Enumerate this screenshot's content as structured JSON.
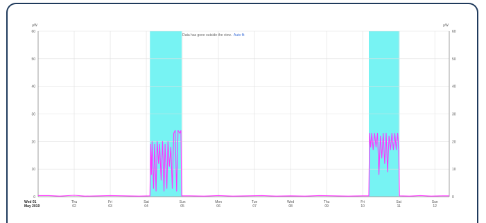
{
  "chart_data": {
    "type": "line",
    "message": {
      "text": "Data has gone outside the view.",
      "link": "Auto fit"
    },
    "y_unit_left": "μW",
    "y_unit_right": "μW",
    "ylim": [
      0,
      60
    ],
    "y_ticks": [
      "0",
      "10",
      "20",
      "30",
      "40",
      "50",
      "60"
    ],
    "x_ticks": [
      {
        "day": "Wed 01",
        "sub": "May 2019"
      },
      {
        "day": "Thu",
        "sub": "02"
      },
      {
        "day": "Fri",
        "sub": "03"
      },
      {
        "day": "Sat",
        "sub": "04"
      },
      {
        "day": "Sun",
        "sub": "05"
      },
      {
        "day": "Mon",
        "sub": "06"
      },
      {
        "day": "Tue",
        "sub": "07"
      },
      {
        "day": "Wed",
        "sub": "08"
      },
      {
        "day": "Thu",
        "sub": "09"
      },
      {
        "day": "Fri",
        "sub": "10"
      },
      {
        "day": "Sat",
        "sub": "11"
      },
      {
        "day": "Sun",
        "sub": "12"
      }
    ],
    "xlim_days": [
      0,
      11.4
    ],
    "grid": true,
    "highlight_color": "#77f3f3",
    "series_color": "#ff33ff",
    "highlights": [
      {
        "start": 3.1,
        "end": 3.98
      },
      {
        "start": 9.17,
        "end": 10.02
      }
    ],
    "series": [
      {
        "points": [
          [
            0.0,
            0.4
          ],
          [
            0.3,
            0.4
          ],
          [
            0.6,
            0.2
          ],
          [
            1.0,
            0.5
          ],
          [
            1.3,
            0.2
          ],
          [
            1.7,
            0.3
          ],
          [
            2.0,
            0.4
          ],
          [
            2.4,
            0.3
          ],
          [
            2.8,
            0.2
          ],
          [
            3.1,
            0.3
          ],
          [
            3.12,
            19
          ],
          [
            3.14,
            8
          ],
          [
            3.16,
            20
          ],
          [
            3.2,
            3
          ],
          [
            3.23,
            19
          ],
          [
            3.27,
            2
          ],
          [
            3.3,
            20
          ],
          [
            3.34,
            12
          ],
          [
            3.37,
            19
          ],
          [
            3.41,
            6
          ],
          [
            3.45,
            20
          ],
          [
            3.49,
            2
          ],
          [
            3.52,
            19
          ],
          [
            3.57,
            3
          ],
          [
            3.6,
            20
          ],
          [
            3.64,
            11
          ],
          [
            3.68,
            18
          ],
          [
            3.72,
            3
          ],
          [
            3.76,
            23
          ],
          [
            3.8,
            24
          ],
          [
            3.84,
            2
          ],
          [
            3.88,
            24
          ],
          [
            3.93,
            23
          ],
          [
            3.96,
            24
          ],
          [
            3.98,
            0.3
          ],
          [
            4.2,
            0.3
          ],
          [
            4.6,
            0.2
          ],
          [
            5.0,
            0.4
          ],
          [
            5.4,
            0.2
          ],
          [
            5.8,
            0.3
          ],
          [
            6.2,
            0.4
          ],
          [
            6.6,
            0.2
          ],
          [
            7.0,
            0.3
          ],
          [
            7.4,
            0.2
          ],
          [
            7.8,
            0.4
          ],
          [
            8.2,
            0.3
          ],
          [
            8.6,
            0.2
          ],
          [
            9.0,
            0.3
          ],
          [
            9.17,
            0.3
          ],
          [
            9.19,
            23
          ],
          [
            9.22,
            18
          ],
          [
            9.25,
            23
          ],
          [
            9.29,
            17
          ],
          [
            9.33,
            23
          ],
          [
            9.37,
            18
          ],
          [
            9.41,
            23
          ],
          [
            9.45,
            8
          ],
          [
            9.49,
            22
          ],
          [
            9.53,
            14
          ],
          [
            9.57,
            23
          ],
          [
            9.61,
            12
          ],
          [
            9.65,
            23
          ],
          [
            9.69,
            9
          ],
          [
            9.73,
            22
          ],
          [
            9.77,
            17
          ],
          [
            9.81,
            23
          ],
          [
            9.85,
            17
          ],
          [
            9.89,
            23
          ],
          [
            9.93,
            17
          ],
          [
            9.97,
            23
          ],
          [
            10.0,
            17
          ],
          [
            10.02,
            0.3
          ],
          [
            10.3,
            0.2
          ],
          [
            10.6,
            0.4
          ],
          [
            10.9,
            0.2
          ],
          [
            11.2,
            0.3
          ],
          [
            11.4,
            0.3
          ]
        ]
      }
    ]
  }
}
